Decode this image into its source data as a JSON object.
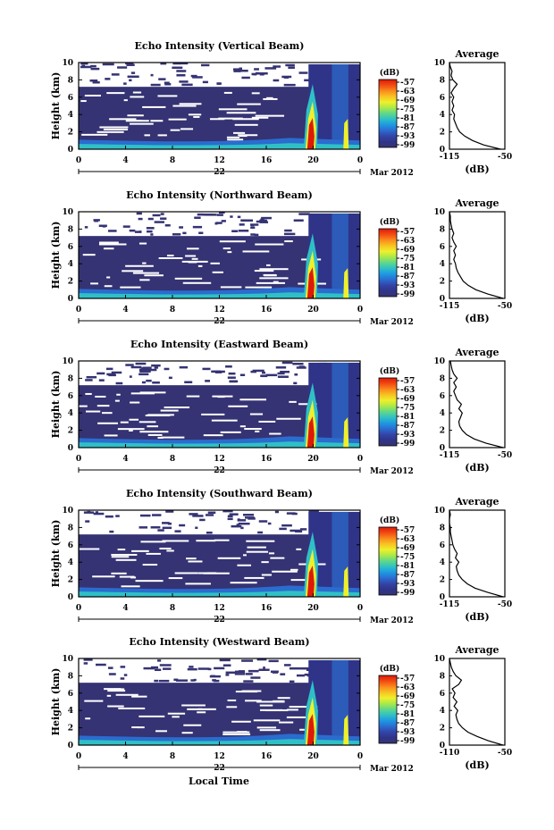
{
  "xlabel_bottom": "Local Time",
  "colorbar": {
    "unit": "(dB)",
    "ticks": [
      "-57",
      "-63",
      "-69",
      "-75",
      "-81",
      "-87",
      "-93",
      "-99"
    ],
    "colors": [
      "#dd1a0a",
      "#f24b12",
      "#fa8a1c",
      "#f8c322",
      "#eef02c",
      "#a8e94a",
      "#5fd78a",
      "#2fc0c6",
      "#1e98e2",
      "#2b6ccf",
      "#3344a8",
      "#2f3488",
      "#353373"
    ]
  },
  "date_label": "Mar 2012",
  "day_label": "22",
  "x_ticks": [
    "0",
    "4",
    "8",
    "12",
    "16",
    "20",
    "0"
  ],
  "y_ticks": [
    "0",
    "2",
    "4",
    "6",
    "8",
    "10"
  ],
  "ylabel": "Height (km)",
  "avg_title": "Average",
  "avg_xlabel": "(dB)",
  "chart_data": [
    {
      "type": "heatmap",
      "title": "Echo Intensity (Vertical Beam)",
      "ylabel": "Height (km)",
      "xlim_hours": [
        0,
        24
      ],
      "ylim_km": [
        0,
        10
      ],
      "colorbar_range_db": [
        -99,
        -57
      ],
      "avg_profile": {
        "title": "Average",
        "xlabel": "(dB)",
        "xlim": [
          -115,
          -50
        ],
        "xticks": [
          "-115",
          "-50"
        ],
        "height_km": [
          0,
          0.5,
          1,
          1.5,
          2,
          2.5,
          3,
          3.5,
          4,
          4.5,
          5,
          5.5,
          6,
          6.5,
          7,
          7.5,
          8,
          8.5,
          9,
          9.5,
          10
        ],
        "db": [
          -55,
          -75,
          -88,
          -97,
          -103,
          -106,
          -108,
          -110,
          -109,
          -112,
          -110,
          -112,
          -110,
          -113,
          -110,
          -106,
          -111,
          -113,
          -112,
          -114,
          -115
        ]
      }
    },
    {
      "type": "heatmap",
      "title": "Echo Intensity (Northward Beam)",
      "ylabel": "Height (km)",
      "xlim_hours": [
        0,
        24
      ],
      "ylim_km": [
        0,
        10
      ],
      "colorbar_range_db": [
        -99,
        -57
      ],
      "avg_profile": {
        "title": "Average",
        "xlabel": "(dB)",
        "xlim": [
          -115,
          -50
        ],
        "xticks": [
          "-115",
          "-50"
        ],
        "height_km": [
          0,
          0.5,
          1,
          1.5,
          2,
          2.5,
          3,
          3.5,
          4,
          4.5,
          5,
          5.5,
          6,
          6.5,
          7,
          7.5,
          8,
          8.5,
          9,
          9.5,
          10
        ],
        "db": [
          -52,
          -70,
          -84,
          -93,
          -99,
          -102,
          -105,
          -107,
          -108,
          -110,
          -108,
          -110,
          -107,
          -110,
          -112,
          -110,
          -112,
          -113,
          -114,
          -114,
          -115
        ]
      }
    },
    {
      "type": "heatmap",
      "title": "Echo Intensity (Eastward Beam)",
      "ylabel": "Height (km)",
      "xlim_hours": [
        0,
        24
      ],
      "ylim_km": [
        0,
        10
      ],
      "colorbar_range_db": [
        -99,
        -57
      ],
      "avg_profile": {
        "title": "Average",
        "xlabel": "(dB)",
        "xlim": [
          -115,
          -50
        ],
        "xticks": [
          "-115",
          "-50"
        ],
        "height_km": [
          0,
          0.5,
          1,
          1.5,
          2,
          2.5,
          3,
          3.5,
          4,
          4.5,
          5,
          5.5,
          6,
          6.5,
          7,
          7.5,
          8,
          8.5,
          9,
          9.5,
          10
        ],
        "db": [
          -52,
          -72,
          -86,
          -95,
          -100,
          -103,
          -104,
          -102,
          -100,
          -104,
          -101,
          -106,
          -108,
          -110,
          -107,
          -110,
          -106,
          -110,
          -112,
          -113,
          -114
        ]
      }
    },
    {
      "type": "heatmap",
      "title": "Echo Intensity (Southward Beam)",
      "ylabel": "Height (km)",
      "xlim_hours": [
        0,
        24
      ],
      "ylim_km": [
        0,
        10
      ],
      "colorbar_range_db": [
        -99,
        -57
      ],
      "avg_profile": {
        "title": "Average",
        "xlabel": "(dB)",
        "xlim": [
          -115,
          -50
        ],
        "xticks": [
          "-115",
          "-50"
        ],
        "height_km": [
          0,
          0.5,
          1,
          1.5,
          2,
          2.5,
          3,
          3.5,
          4,
          4.5,
          5,
          5.5,
          6,
          6.5,
          7,
          7.5,
          8,
          8.5,
          9,
          9.5,
          10
        ],
        "db": [
          -52,
          -70,
          -85,
          -94,
          -100,
          -104,
          -106,
          -107,
          -104,
          -108,
          -106,
          -109,
          -111,
          -112,
          -113,
          -114,
          -114,
          -115,
          -115,
          -114,
          -115
        ]
      }
    },
    {
      "type": "heatmap",
      "title": "Echo Intensity (Westward Beam)",
      "ylabel": "Height (km)",
      "xlim_hours": [
        0,
        24
      ],
      "ylim_km": [
        0,
        10
      ],
      "colorbar_range_db": [
        -99,
        -57
      ],
      "avg_profile": {
        "title": "Average",
        "xlabel": "(dB)",
        "xlim": [
          -110,
          -50
        ],
        "xticks": [
          "-110",
          "-50"
        ],
        "height_km": [
          0,
          0.5,
          1,
          1.5,
          2,
          2.5,
          3,
          3.5,
          4,
          4.5,
          5,
          5.5,
          6,
          6.5,
          7,
          7.5,
          8,
          8.5,
          9,
          9.5,
          10
        ],
        "db": [
          -52,
          -68,
          -80,
          -90,
          -96,
          -100,
          -102,
          -103,
          -101,
          -105,
          -102,
          -106,
          -104,
          -107,
          -100,
          -97,
          -103,
          -106,
          -108,
          -109,
          -110
        ]
      }
    }
  ]
}
